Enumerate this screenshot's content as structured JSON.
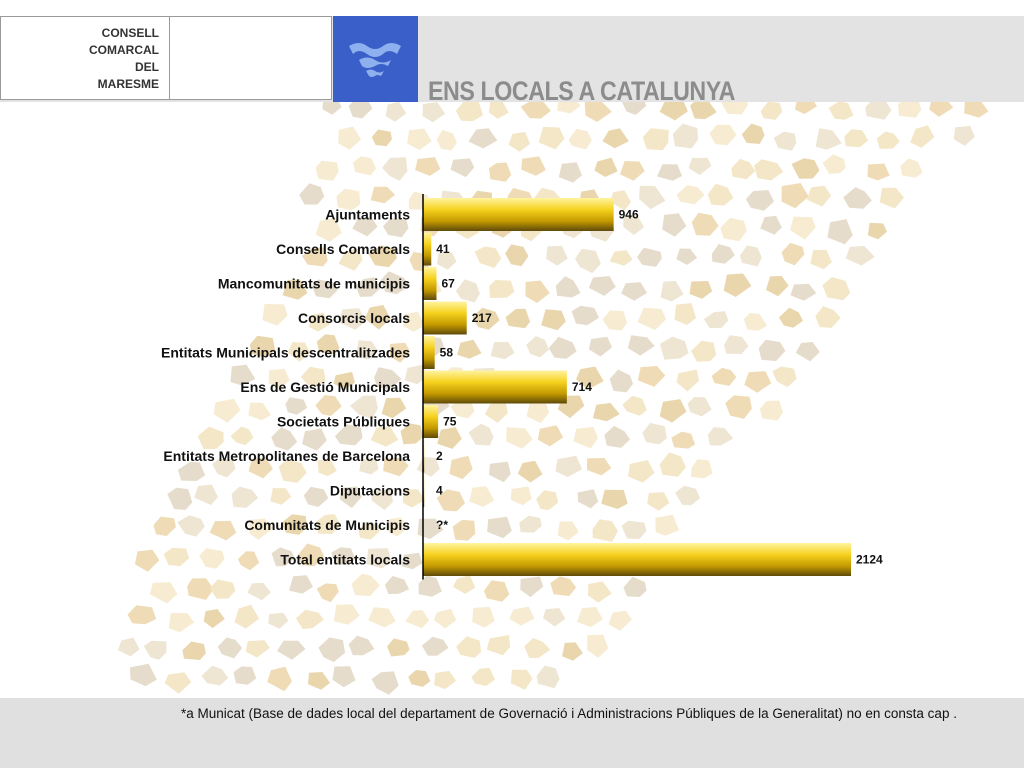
{
  "header": {
    "logo_lines": [
      "CONSELL",
      "COMARCAL",
      "DEL",
      "MARESME"
    ],
    "title": "ENS LOCALS A CATALUNYA"
  },
  "colors": {
    "bar_light": "#fbe25a",
    "bar_mid": "#e2b400",
    "bar_dark": "#5e4a0a",
    "emblem_blue": "#3a5fc8",
    "title_gray": "#8c8c8c"
  },
  "chart_data": {
    "type": "bar",
    "orientation": "horizontal",
    "categories": [
      "Ajuntaments",
      "Consells Comarcals",
      "Mancomunitats de municipis",
      "Consorcis locals",
      "Entitats Municipals descentralitzades",
      "Ens de Gestió Municipals",
      "Societats Públiques",
      "Entitats Metropolitanes de Barcelona",
      "Diputacions",
      "Comunitats de Municipis",
      "Total entitats locals"
    ],
    "values": [
      946,
      41,
      67,
      217,
      58,
      714,
      75,
      2,
      4,
      null,
      2124
    ],
    "data_labels": [
      "946",
      "41",
      "67",
      "217",
      "58",
      "714",
      "75",
      "2",
      "4",
      "?*",
      "2124"
    ],
    "xlim": [
      0,
      2124
    ],
    "grid": false,
    "legend": "none",
    "title": "",
    "xlabel": "",
    "ylabel": ""
  },
  "footnote": "*a Municat (Base de dades local del departament de Governació i Administracions Públiques de la Generalitat) no en consta cap ."
}
